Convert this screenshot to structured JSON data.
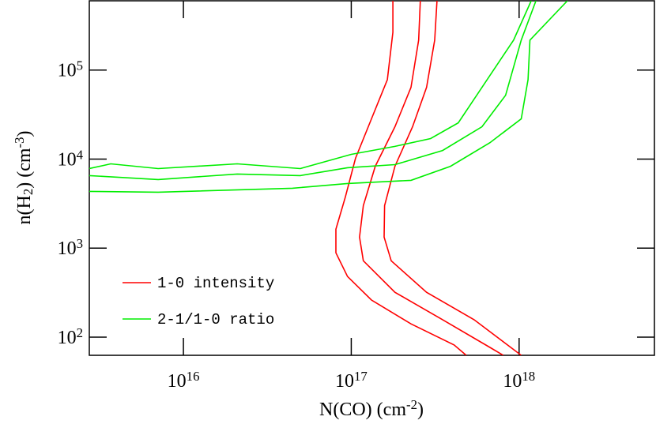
{
  "chart_data": {
    "type": "line",
    "x_label": "N(CO) (cm^-2)",
    "y_label": "n(H_2) (cm^-3)",
    "xscale": "log",
    "yscale": "log",
    "xlim": [
      2750000000000000.0,
      6.4e+18
    ],
    "ylim": [
      62.5,
      600000.0
    ],
    "xticks": [
      {
        "value": 1e+16,
        "label": "10^16"
      },
      {
        "value": 1e+17,
        "label": "10^17"
      },
      {
        "value": 1e+18,
        "label": "10^18"
      }
    ],
    "yticks": [
      {
        "value": 100,
        "label": "10^2"
      },
      {
        "value": 1000,
        "label": "10^3"
      },
      {
        "value": 10000,
        "label": "10^4"
      },
      {
        "value": 100000,
        "label": "10^5"
      }
    ],
    "legend": "lower left",
    "series": [
      {
        "name": "1-0 intensity",
        "color": "#ff0000",
        "contours": [
          {
            "x": [
              1.77e+17,
              1.77e+17,
              1.64e+17,
              1.32e+17,
              1.06e+17,
              9.2e+16,
              8.1e+16,
              8.1e+16,
              9.5e+16,
              1.32e+17,
              2.27e+17,
              4.1e+17,
              4.84e+17
            ],
            "y": [
              600000.0,
              266000.0,
              78000.0,
              28300.0,
              10200.0,
              3680.0,
              1630.0,
              885,
              480,
              261,
              141,
              81.7,
              62.5
            ]
          },
          {
            "x": [
              2.58e+17,
              2.52e+17,
              2.27e+17,
              1.82e+17,
              1.39e+17,
              1.18e+17,
              1.12e+17,
              1.18e+17,
              1.82e+17,
              3.5e+17,
              6.7e+17,
              8.05e+17
            ],
            "y": [
              600000.0,
              217000.0,
              63800.0,
              23100.0,
              8300.0,
              3000.0,
              1330.0,
              721,
              319,
              157,
              76.7,
              62.5
            ]
          },
          {
            "x": [
              3.24e+17,
              3.14e+17,
              2.81e+17,
              2.32e+17,
              1.82e+17,
              1.58e+17,
              1.57e+17,
              1.73e+17,
              2.81e+17,
              5.39e+17,
              1.03e+18
            ],
            "y": [
              600000.0,
              217000.0,
              63800.0,
              23100.0,
              8300.0,
              3000.0,
              1330.0,
              721,
              319,
              157,
              62.5
            ]
          }
        ]
      },
      {
        "name": "2-1/1-0 ratio",
        "color": "#00ee00",
        "contours": [
          {
            "x": [
              2750000000000000.0,
              3690000000000000.0,
              7070000000000000.0,
              2.09e+16,
              4.97e+16,
              1e+17,
              1.82e+17,
              2.97e+17,
              4.34e+17,
              6.01e+17,
              9.27e+17,
              1.18e+18
            ],
            "y": [
              7830.0,
              8850.0,
              7830.0,
              8850.0,
              7830.0,
              11300.0,
              13900.0,
              17000.0,
              25500.0,
              63800.0,
              217000.0,
              600000.0
            ]
          },
          {
            "x": [
              2750000000000000.0,
              7070000000000000.0,
              2.09e+16,
              4.97e+16,
              9.5e+16,
              1.82e+17,
              3.5e+17,
              6.01e+17,
              8.31e+17,
              1.03e+18,
              1.26e+18
            ],
            "y": [
              6520.0,
              5890.0,
              6790.0,
              6520.0,
              8000.0,
              8670.0,
              12500.0,
              23100.0,
              52100.0,
              217000.0,
              600000.0
            ]
          },
          {
            "x": [
              2750000000000000.0,
              7070000000000000.0,
              4.46e+16,
              9.5e+16,
              2.27e+17,
              3.9e+17,
              6.7e+17,
              1.03e+18,
              1.13e+18,
              1.16e+18,
              1.94e+18
            ],
            "y": [
              4340.0,
              4250.0,
              4710.0,
              5320.0,
              5770.0,
              8300.0,
              15300.0,
              28300.0,
              78000.0,
              217000.0,
              600000.0
            ]
          }
        ]
      }
    ]
  }
}
